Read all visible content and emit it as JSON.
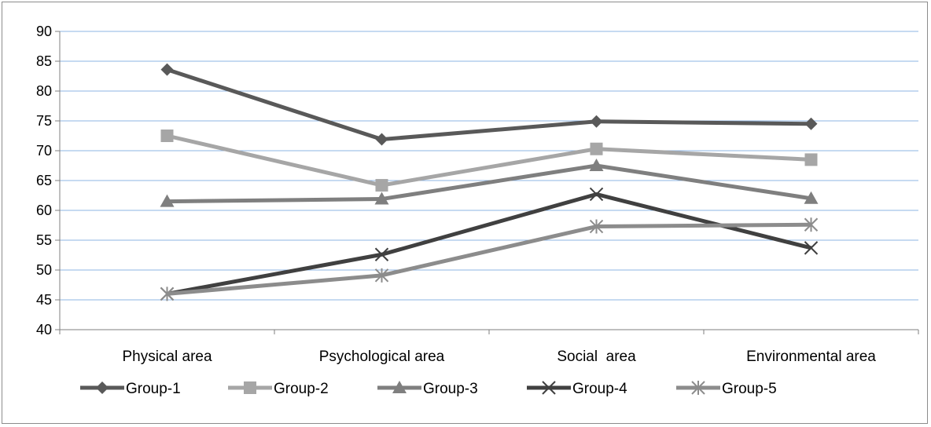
{
  "chart_data": {
    "type": "line",
    "title": "",
    "xlabel": "",
    "ylabel": "",
    "categories": [
      "Physical area",
      "Psychological area",
      "Social  area",
      "Environmental area"
    ],
    "ylim": [
      40,
      90
    ],
    "yticks": [
      40,
      45,
      50,
      55,
      60,
      65,
      70,
      75,
      80,
      85,
      90
    ],
    "grid": true,
    "legend_position": "bottom",
    "series": [
      {
        "name": "Group-1",
        "values": [
          83.6,
          71.9,
          74.9,
          74.5
        ],
        "color": "#595959",
        "marker": "diamond"
      },
      {
        "name": "Group-2",
        "values": [
          72.5,
          64.2,
          70.3,
          68.5
        ],
        "color": "#a6a6a6",
        "marker": "square"
      },
      {
        "name": "Group-3",
        "values": [
          61.5,
          61.9,
          67.5,
          62.0
        ],
        "color": "#7f7f7f",
        "marker": "triangle"
      },
      {
        "name": "Group-4",
        "values": [
          46.0,
          52.6,
          62.7,
          53.7
        ],
        "color": "#404040",
        "marker": "x"
      },
      {
        "name": "Group-5",
        "values": [
          46.0,
          49.1,
          57.3,
          57.6
        ],
        "color": "#8c8c8c",
        "marker": "star"
      }
    ]
  }
}
